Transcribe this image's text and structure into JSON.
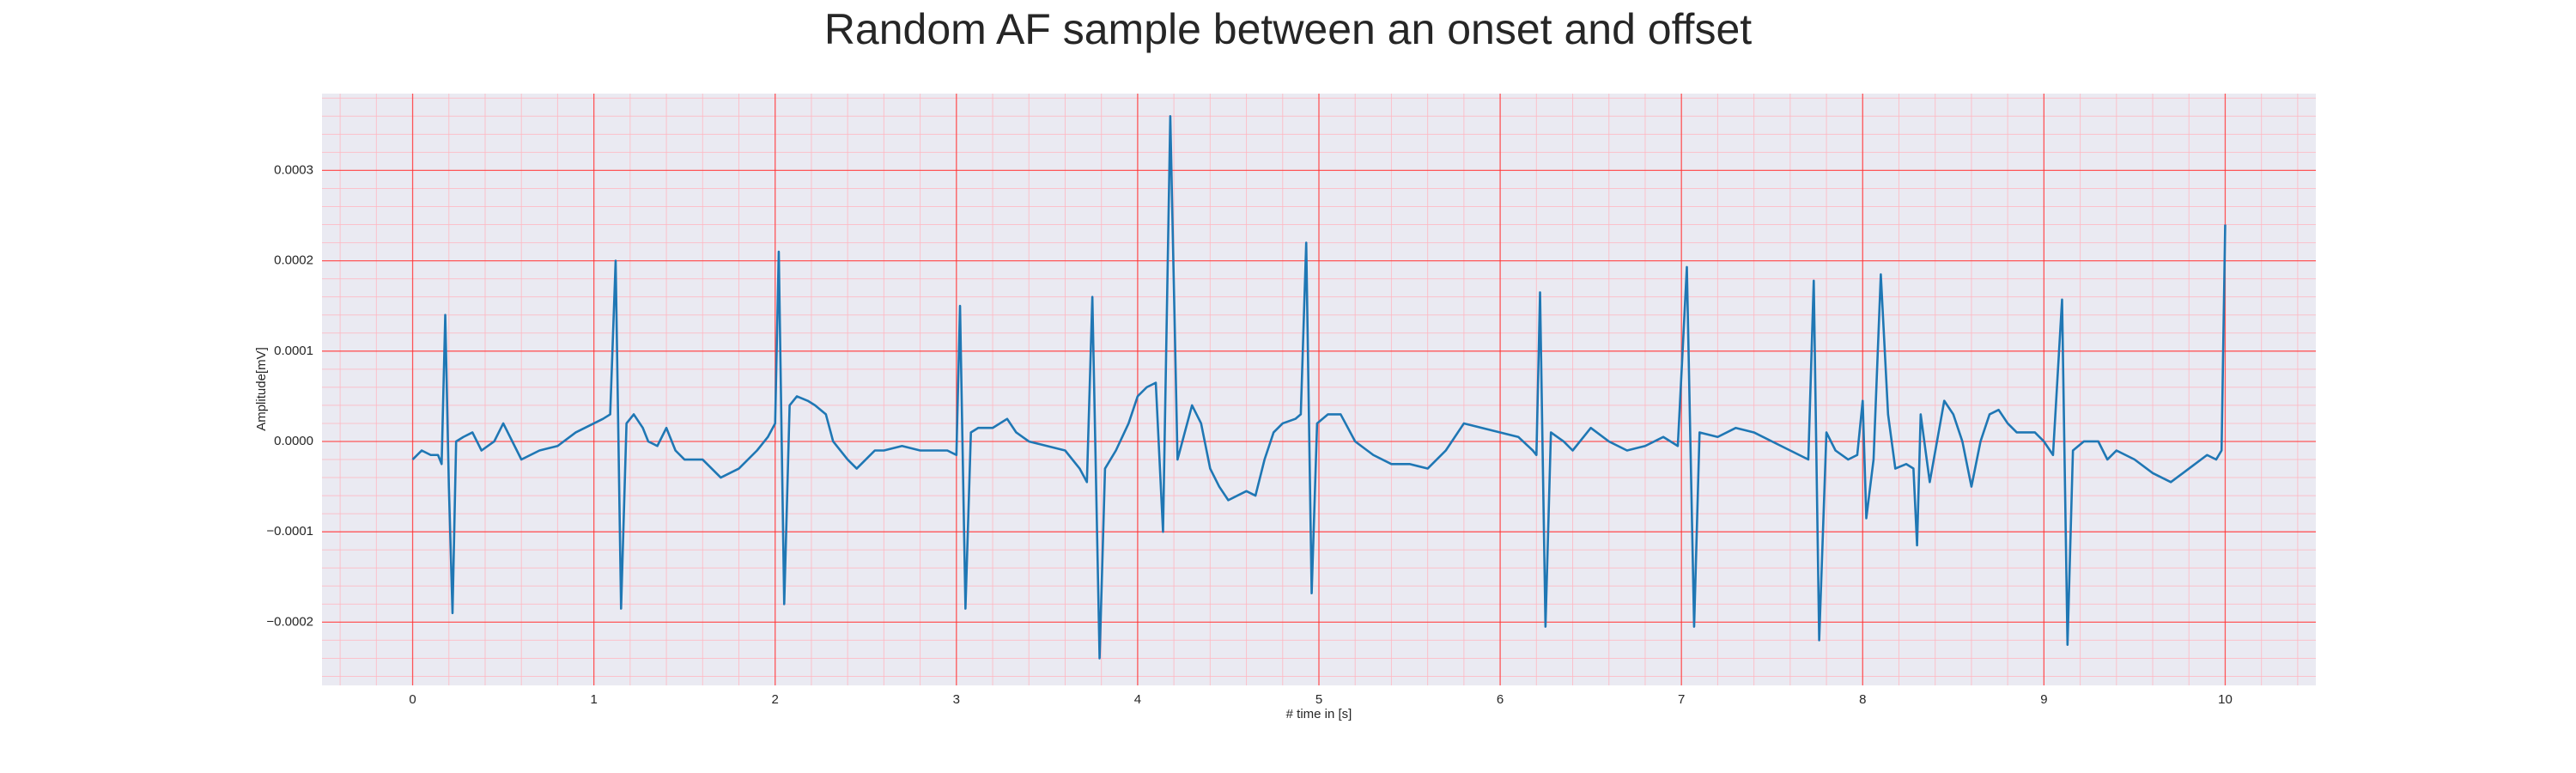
{
  "chart_data": {
    "type": "line",
    "title": "Random AF sample between an onset and offset",
    "xlabel": "# time in [s]",
    "ylabel": "Amplitude[mV]",
    "xlim": [
      -0.5,
      10.5
    ],
    "ylim": [
      -0.00027,
      0.000385
    ],
    "xticks": [
      0,
      1,
      2,
      3,
      4,
      5,
      6,
      7,
      8,
      9,
      10
    ],
    "yticks": [
      {
        "value": -0.0002,
        "label": "−0.0002"
      },
      {
        "value": -0.0001,
        "label": "−0.0001"
      },
      {
        "value": 0,
        "label": "0.0000"
      },
      {
        "value": 0.0001,
        "label": "0.0001"
      },
      {
        "value": 0.0002,
        "label": "0.0002"
      },
      {
        "value": 0.0003,
        "label": "0.0003"
      }
    ],
    "xminor_ticks": [
      -0.4,
      -0.2,
      0,
      0.2,
      0.4,
      0.6,
      0.8,
      1,
      1.2,
      1.4,
      1.6,
      1.8,
      2,
      2.2,
      2.4,
      2.6,
      2.8,
      3,
      3.2,
      3.4,
      3.6,
      3.8,
      4,
      4.2,
      4.4,
      4.6,
      4.8,
      5,
      5.2,
      5.4,
      5.6,
      5.8,
      6,
      6.2,
      6.4,
      6.6,
      6.8,
      7,
      7.2,
      7.4,
      7.6,
      7.8,
      8,
      8.2,
      8.4,
      8.6,
      8.8,
      9,
      9.2,
      9.4,
      9.6,
      9.8,
      10,
      10.2,
      10.4
    ],
    "yminor_ticks": [
      -0.00026,
      -0.00024,
      -0.00022,
      -0.0002,
      -0.00018,
      -0.00016,
      -0.00014,
      -0.00012,
      -0.0001,
      -8e-05,
      -6e-05,
      -4e-05,
      -2e-05,
      0,
      2e-05,
      4e-05,
      6e-05,
      8e-05,
      0.0001,
      0.00012,
      0.00014,
      0.00016,
      0.00018,
      0.0002,
      0.00022,
      0.00024,
      0.00026,
      0.00028,
      0.0003,
      0.00032,
      0.00034,
      0.00036,
      0.00038
    ],
    "grid": true,
    "minor_grid": true,
    "series": [
      {
        "color": "#1f77b4",
        "x": [
          0,
          0.05,
          0.1,
          0.14,
          0.16,
          0.18,
          0.2,
          0.22,
          0.24,
          0.28,
          0.33,
          0.38,
          0.45,
          0.5,
          0.55,
          0.6,
          0.7,
          0.8,
          0.9,
          1.0,
          1.05,
          1.09,
          1.12,
          1.15,
          1.18,
          1.22,
          1.27,
          1.3,
          1.35,
          1.4,
          1.45,
          1.5,
          1.6,
          1.7,
          1.8,
          1.9,
          1.96,
          2.0,
          2.02,
          2.05,
          2.08,
          2.12,
          2.18,
          2.22,
          2.28,
          2.32,
          2.4,
          2.45,
          2.55,
          2.6,
          2.7,
          2.8,
          2.95,
          3.0,
          3.02,
          3.05,
          3.08,
          3.12,
          3.2,
          3.28,
          3.33,
          3.4,
          3.5,
          3.6,
          3.68,
          3.72,
          3.75,
          3.79,
          3.82,
          3.88,
          3.95,
          4.0,
          4.05,
          4.1,
          4.14,
          4.18,
          4.22,
          4.26,
          4.3,
          4.35,
          4.4,
          4.45,
          4.5,
          4.55,
          4.6,
          4.65,
          4.7,
          4.75,
          4.8,
          4.87,
          4.9,
          4.93,
          4.96,
          4.99,
          5.05,
          5.12,
          5.2,
          5.3,
          5.4,
          5.5,
          5.6,
          5.7,
          5.8,
          5.9,
          6.0,
          6.1,
          6.18,
          6.2,
          6.22,
          6.25,
          6.28,
          6.35,
          6.4,
          6.5,
          6.6,
          6.7,
          6.8,
          6.9,
          6.98,
          7.03,
          7.07,
          7.1,
          7.2,
          7.3,
          7.4,
          7.5,
          7.6,
          7.7,
          7.73,
          7.76,
          7.8,
          7.85,
          7.92,
          7.97,
          8.0,
          8.02,
          8.06,
          8.1,
          8.14,
          8.18,
          8.24,
          8.28,
          8.3,
          8.32,
          8.37,
          8.45,
          8.5,
          8.55,
          8.6,
          8.65,
          8.7,
          8.75,
          8.8,
          8.85,
          8.95,
          9.0,
          9.05,
          9.1,
          9.13,
          9.16,
          9.22,
          9.3,
          9.35,
          9.4,
          9.5,
          9.6,
          9.7,
          9.8,
          9.9,
          9.95,
          9.98,
          10.0
        ],
        "values": [
          -2e-05,
          -1e-05,
          -1.5e-05,
          -1.5e-05,
          -2.5e-05,
          0.00014,
          -5e-05,
          -0.00019,
          0,
          5e-06,
          1e-05,
          -1e-05,
          0,
          2e-05,
          0,
          -2e-05,
          -1e-05,
          -5e-06,
          1e-05,
          2e-05,
          2.5e-05,
          3e-05,
          0.0002,
          -0.000185,
          2e-05,
          3e-05,
          1.5e-05,
          0,
          -5e-06,
          1.5e-05,
          -1e-05,
          -2e-05,
          -2e-05,
          -4e-05,
          -3e-05,
          -1e-05,
          5e-06,
          2e-05,
          0.00021,
          -0.00018,
          4e-05,
          5e-05,
          4.5e-05,
          4e-05,
          3e-05,
          0,
          -2e-05,
          -3e-05,
          -1e-05,
          -1e-05,
          -5e-06,
          -1e-05,
          -1e-05,
          -1.5e-05,
          0.00015,
          -0.000185,
          1e-05,
          1.5e-05,
          1.5e-05,
          2.5e-05,
          1e-05,
          0,
          -5e-06,
          -1e-05,
          -3e-05,
          -4.5e-05,
          0.00016,
          -0.00024,
          -3e-05,
          -1e-05,
          2e-05,
          5e-05,
          6e-05,
          6.5e-05,
          -0.0001,
          0.00036,
          -2e-05,
          1e-05,
          4e-05,
          2e-05,
          -3e-05,
          -5e-05,
          -6.5e-05,
          -6e-05,
          -5.5e-05,
          -6e-05,
          -2e-05,
          1e-05,
          2e-05,
          2.5e-05,
          3e-05,
          0.00022,
          -0.000168,
          2e-05,
          3e-05,
          3e-05,
          0,
          -1.5e-05,
          -2.5e-05,
          -2.5e-05,
          -3e-05,
          -1e-05,
          2e-05,
          1.5e-05,
          1e-05,
          5e-06,
          -1e-05,
          -1.5e-05,
          0.000165,
          -0.000205,
          1e-05,
          0,
          -1e-05,
          1.5e-05,
          0,
          -1e-05,
          -5e-06,
          5e-06,
          -5e-06,
          0.000193,
          -0.000205,
          1e-05,
          5e-06,
          1.5e-05,
          1e-05,
          0,
          -1e-05,
          -2e-05,
          0.000178,
          -0.00022,
          1e-05,
          -1e-05,
          -2e-05,
          -1.5e-05,
          4.5e-05,
          -8.5e-05,
          -2e-05,
          0.000185,
          3e-05,
          -3e-05,
          -2.5e-05,
          -3e-05,
          -0.000115,
          3e-05,
          -4.5e-05,
          4.5e-05,
          3e-05,
          0,
          -5e-05,
          0,
          3e-05,
          3.5e-05,
          2e-05,
          1e-05,
          1e-05,
          0,
          -1.5e-05,
          0.000157,
          -0.000225,
          -1e-05,
          0,
          0,
          -2e-05,
          -1e-05,
          -2e-05,
          -3.5e-05,
          -4.5e-05,
          -3e-05,
          -1.5e-05,
          -2e-05,
          -1e-05,
          0.00024
        ]
      }
    ]
  }
}
